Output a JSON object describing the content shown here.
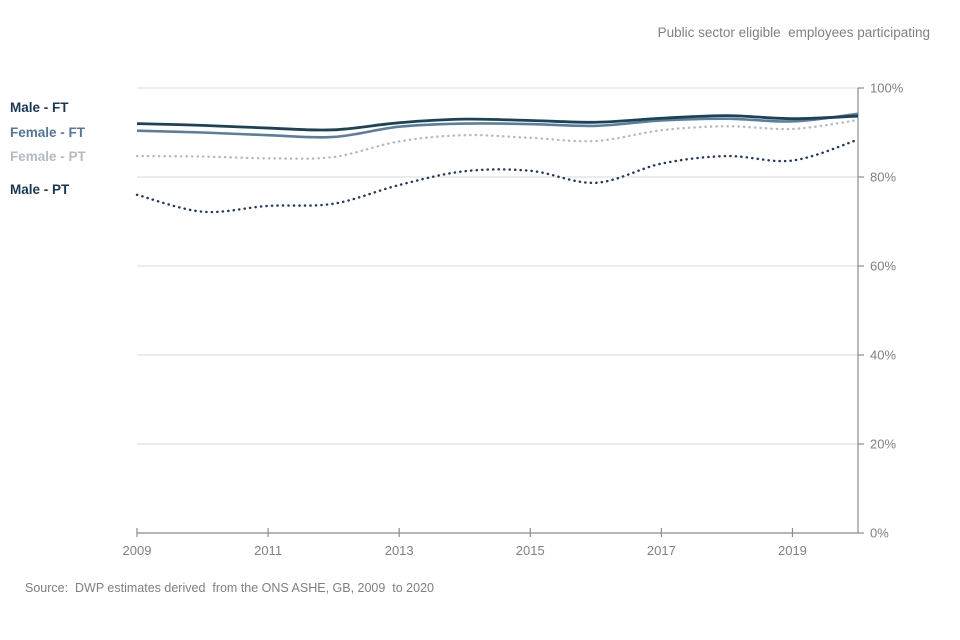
{
  "header": {
    "title": "Public sector eligible  employees participating"
  },
  "source_note": "Source:  DWP estimates derived  from the ONS ASHE, GB, 2009  to 2020",
  "legend": {
    "items": [
      {
        "id": "male-ft",
        "label": "Male - FT",
        "color": "#17375d"
      },
      {
        "id": "female-ft",
        "label": "Female - FT",
        "color": "#53789d"
      },
      {
        "id": "female-pt",
        "label": "Female - PT",
        "color": "#b3bac3"
      },
      {
        "id": "male-pt",
        "label": "Male - PT",
        "color": "#17375d"
      }
    ]
  },
  "chart_data": {
    "type": "line",
    "title": "Public sector eligible employees participating",
    "x": [
      2009,
      2010,
      2011,
      2012,
      2013,
      2014,
      2015,
      2016,
      2017,
      2018,
      2019,
      2020
    ],
    "x_tick_labels": [
      "2009",
      "2011",
      "2013",
      "2015",
      "2017",
      "2019"
    ],
    "x_tick_years": [
      2009,
      2011,
      2013,
      2015,
      2017,
      2019
    ],
    "xlim": [
      2009,
      2020
    ],
    "y_ticks": [
      0,
      20,
      40,
      60,
      80,
      100
    ],
    "y_tick_labels": [
      "0%",
      "20%",
      "40%",
      "60%",
      "80%",
      "100%"
    ],
    "ylim": [
      0,
      100
    ],
    "y_axis_side": "right",
    "grid": "horizontal",
    "legend_position": "left",
    "line_shape": "smoothed",
    "series": [
      {
        "name": "Female - PT",
        "style": "dotted",
        "width": 2.4,
        "color": "#b3bac3",
        "values": [
          84.7,
          84.6,
          84.2,
          84.5,
          88.0,
          89.4,
          88.8,
          88.1,
          90.5,
          91.4,
          90.8,
          92.8
        ]
      },
      {
        "name": "Male - PT",
        "style": "dotted",
        "width": 2.4,
        "color": "#1f3864",
        "values": [
          76.0,
          72.2,
          73.5,
          74.0,
          78.2,
          81.3,
          81.4,
          78.7,
          83.0,
          84.7,
          83.7,
          88.4
        ]
      },
      {
        "name": "Female - FT",
        "style": "solid",
        "width": 2.6,
        "color": "#5b7e9f",
        "values": [
          90.4,
          90.0,
          89.4,
          89.0,
          91.3,
          92.0,
          91.9,
          91.5,
          92.7,
          93.1,
          92.5,
          94.2
        ]
      },
      {
        "name": "Male - FT",
        "style": "solid",
        "width": 2.8,
        "color": "#1c4257",
        "values": [
          92.0,
          91.6,
          91.0,
          90.6,
          92.2,
          93.0,
          92.7,
          92.3,
          93.2,
          93.8,
          93.1,
          93.7
        ]
      }
    ]
  },
  "colors": {
    "axis": "#8c8c8c",
    "gridline": "#d9d9d9",
    "tick_text": "#808080",
    "background": "#ffffff"
  }
}
